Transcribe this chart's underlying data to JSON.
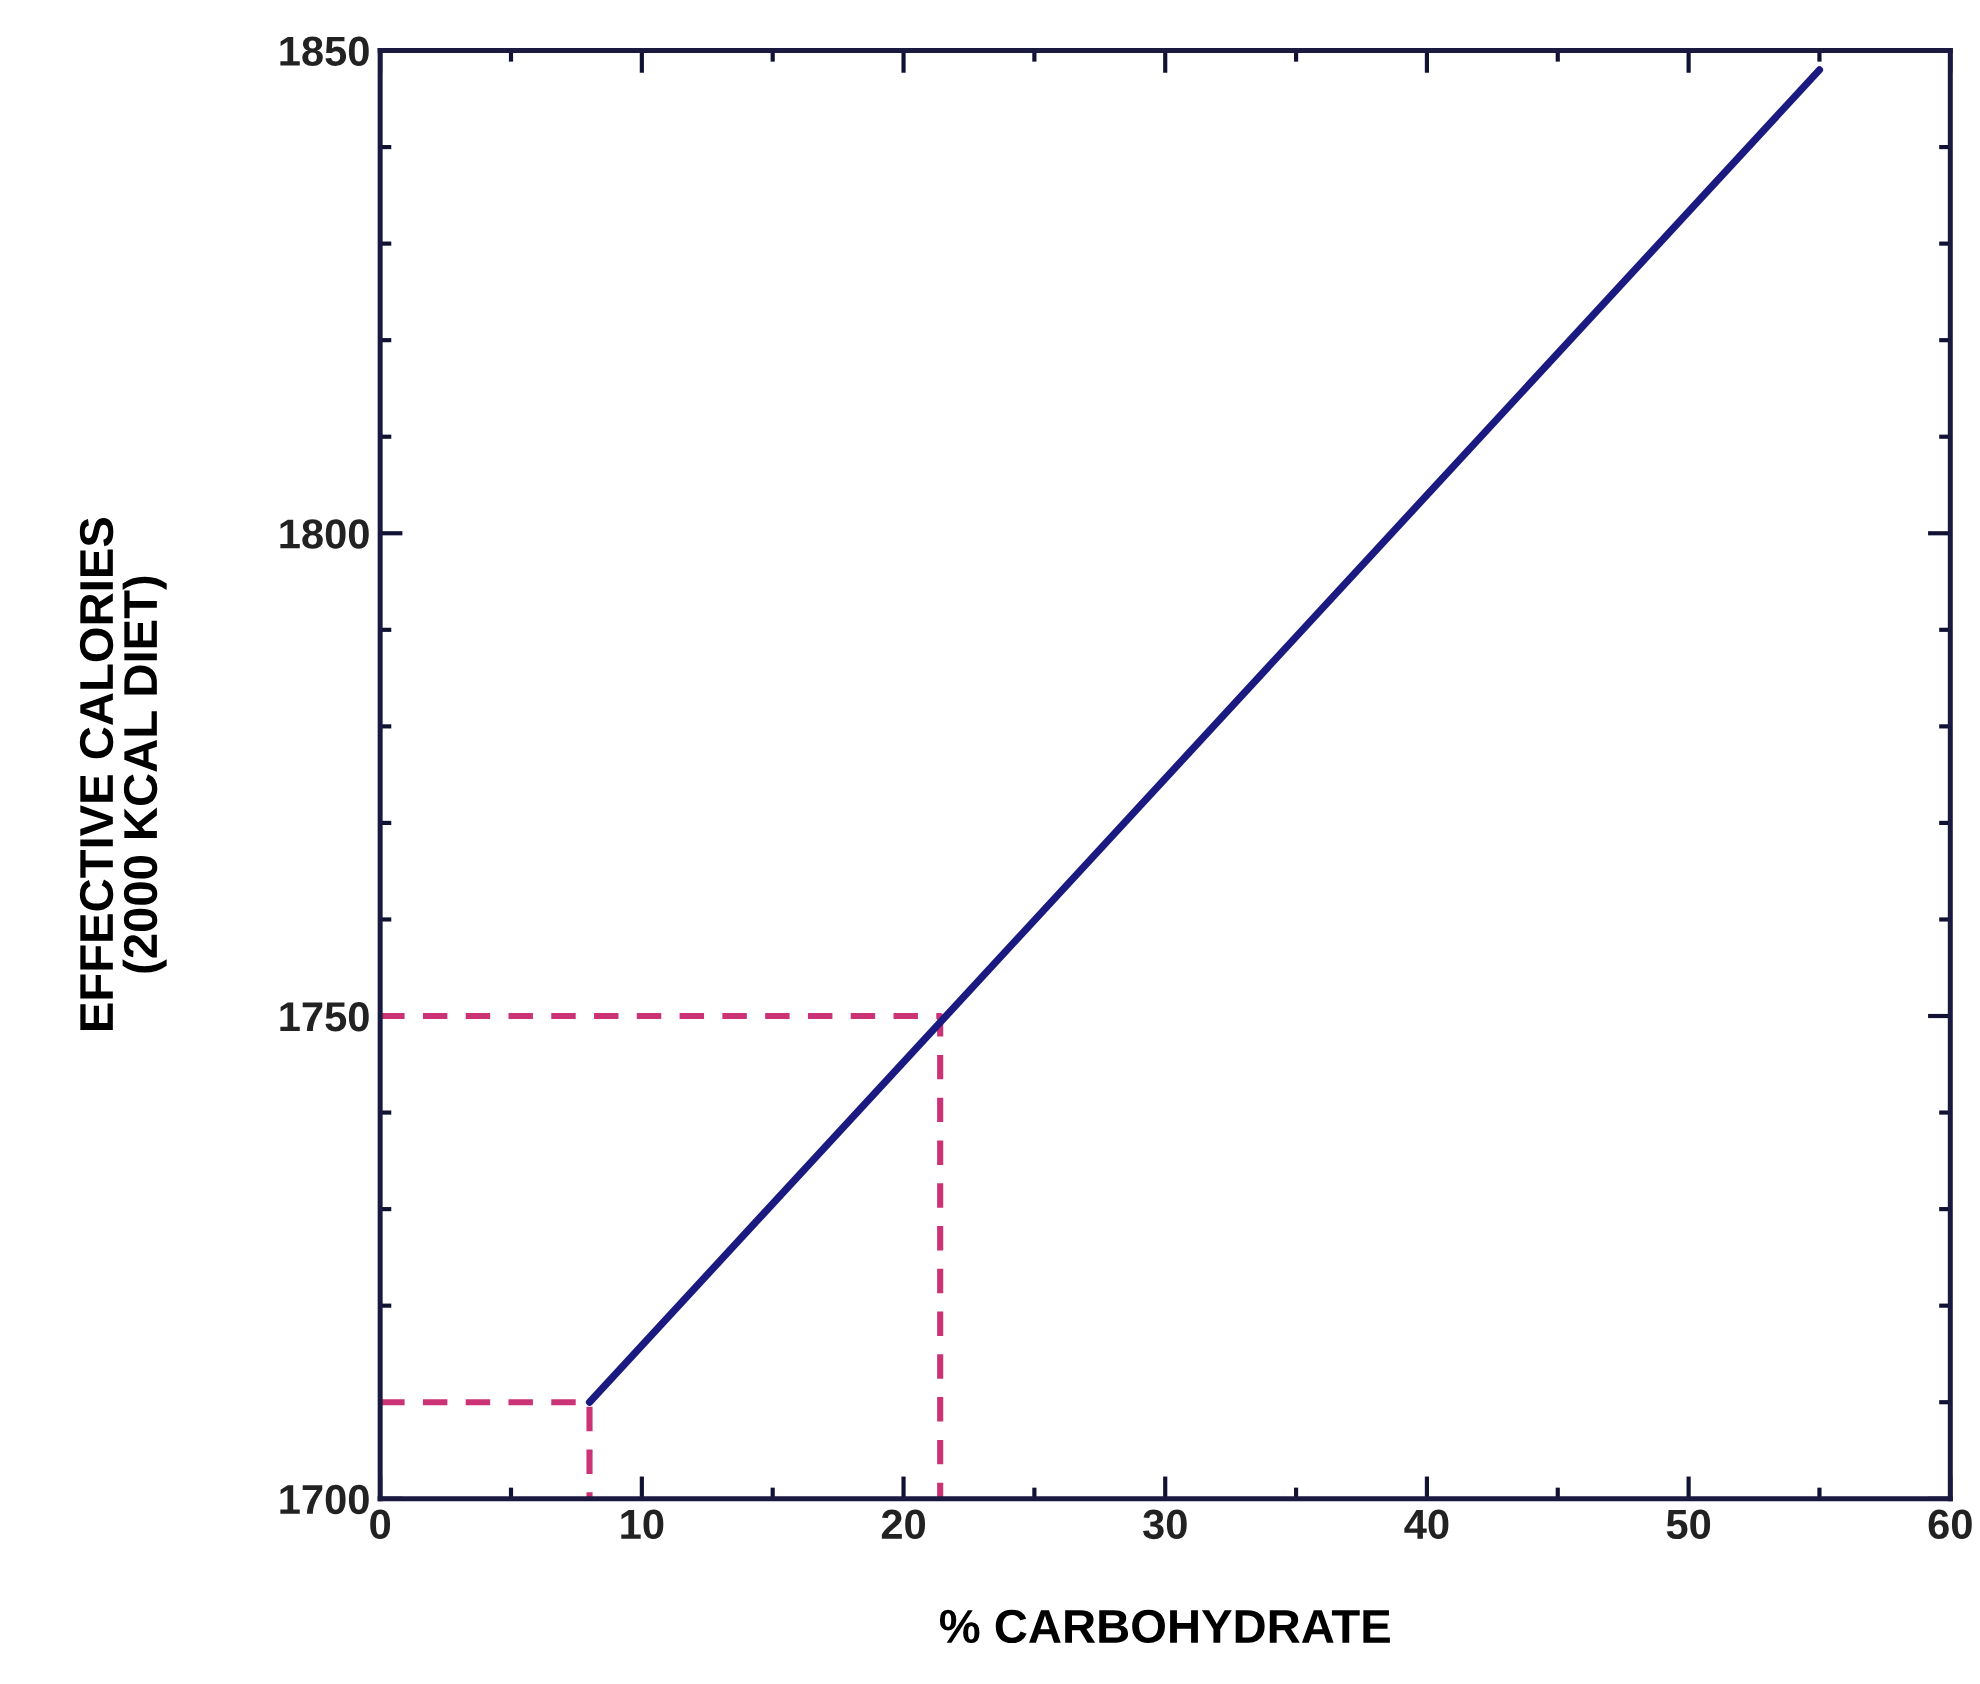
{
  "chart_data": {
    "type": "line",
    "xlabel": "% CARBOHYDRATE",
    "ylabel": "EFFECTIVE CALORIES\n(2000 KCAL DIET)",
    "xlim": [
      0,
      60
    ],
    "ylim": [
      1700,
      1850
    ],
    "xticks": [
      0,
      {
        "value": 5,
        "label": null
      },
      10,
      {
        "value": 15,
        "label": null
      },
      20,
      {
        "value": 25,
        "label": null
      },
      30,
      {
        "value": 35,
        "label": null
      },
      40,
      {
        "value": 45,
        "label": null
      },
      50,
      {
        "value": 55,
        "label": null
      },
      60
    ],
    "yticks": [
      1700,
      {
        "value": 1710,
        "label": null
      },
      {
        "value": 1720,
        "label": null
      },
      {
        "value": 1730,
        "label": null
      },
      {
        "value": 1740,
        "label": null
      },
      1750,
      {
        "value": 1760,
        "label": null
      },
      {
        "value": 1770,
        "label": null
      },
      {
        "value": 1780,
        "label": null
      },
      {
        "value": 1790,
        "label": null
      },
      1800,
      {
        "value": 1810,
        "label": null
      },
      {
        "value": 1820,
        "label": null
      },
      {
        "value": 1830,
        "label": null
      },
      {
        "value": 1840,
        "label": null
      },
      1850
    ],
    "grid": false,
    "legend": false,
    "series": [
      {
        "color": "#1a1a80",
        "line_style": "solid",
        "x": [
          8,
          55
        ],
        "values": [
          1710,
          1848
        ]
      },
      {
        "color": "#cc3377",
        "line_style": "dashed",
        "x": [
          0,
          8,
          8
        ],
        "values": [
          1710,
          1710,
          1700
        ]
      },
      {
        "color": "#cc3377",
        "line_style": "dashed",
        "x": [
          0,
          21.4,
          21.4
        ],
        "values": [
          1750,
          1750,
          1700
        ]
      }
    ]
  }
}
